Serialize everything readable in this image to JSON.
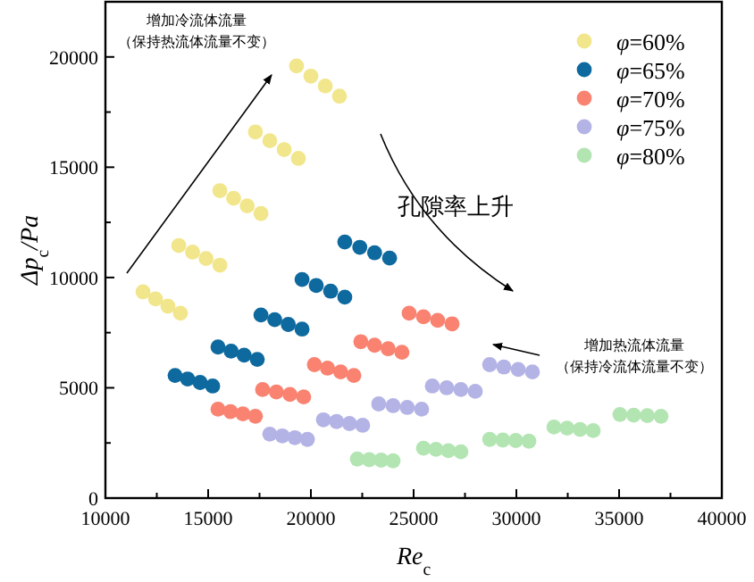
{
  "chart_data": {
    "type": "scatter",
    "xlabel": "Re$_{c}$",
    "ylabel": "Δp$_{c}$/Pa",
    "xlim": [
      10000,
      40000
    ],
    "xticks": [
      10000,
      15000,
      20000,
      25000,
      30000,
      35000,
      40000
    ],
    "ylim": [
      0,
      22500
    ],
    "yticks": [
      0,
      5000,
      10000,
      15000,
      20000
    ],
    "grid": false,
    "legend": "top right",
    "marker": "circle",
    "annotations": [
      "增加冷流体流量",
      "（保持热流体流量不变）",
      "孔隙率上升",
      "增加热流体流量",
      "（保持冷流体流量不变）"
    ],
    "series": [
      {
        "name": "φ=60%",
        "color": "#f2e68c",
        "x": [
          11830,
          12440,
          13040,
          13650,
          13570,
          14240,
          14900,
          15570,
          15570,
          16240,
          16900,
          17570,
          17300,
          18000,
          18700,
          19390,
          19300,
          20000,
          20700,
          21390
        ],
        "values": [
          9350,
          9030,
          8700,
          8380,
          11450,
          11150,
          10860,
          10560,
          13940,
          13590,
          13250,
          12900,
          16600,
          16200,
          15800,
          15400,
          19590,
          19130,
          18680,
          18220
        ]
      },
      {
        "name": "φ=65%",
        "color": "#0d699e",
        "x": [
          13390,
          14000,
          14610,
          15220,
          15480,
          16120,
          16750,
          17390,
          17570,
          18240,
          18900,
          19570,
          19570,
          20260,
          20960,
          21650,
          21650,
          22380,
          23100,
          23830
        ],
        "values": [
          5560,
          5400,
          5240,
          5080,
          6850,
          6660,
          6480,
          6290,
          8300,
          8090,
          7870,
          7660,
          9910,
          9640,
          9380,
          9110,
          11610,
          11370,
          11120,
          10880
        ]
      },
      {
        "name": "φ=70%",
        "color": "#f98270",
        "x": [
          15480,
          16090,
          16690,
          17300,
          17650,
          18320,
          18980,
          19650,
          20170,
          20810,
          21450,
          22090,
          22430,
          23100,
          23760,
          24430,
          24780,
          25480,
          26170,
          26870
        ],
        "values": [
          4030,
          3920,
          3820,
          3710,
          4920,
          4810,
          4700,
          4590,
          6050,
          5890,
          5720,
          5560,
          7090,
          6930,
          6770,
          6610,
          8380,
          8220,
          8060,
          7900
        ]
      },
      {
        "name": "φ=75%",
        "color": "#b4b3e5",
        "x": [
          18000,
          18610,
          19220,
          19830,
          20610,
          21250,
          21880,
          22520,
          23300,
          24000,
          24690,
          25390,
          25910,
          26610,
          27300,
          28000,
          28700,
          29390,
          30090,
          30780
        ],
        "values": [
          2900,
          2820,
          2740,
          2660,
          3550,
          3470,
          3380,
          3300,
          4270,
          4190,
          4110,
          4030,
          5080,
          5000,
          4920,
          4840,
          6050,
          5940,
          5830,
          5720
        ]
      },
      {
        "name": "φ=80%",
        "color": "#b3e5b3",
        "x": [
          22260,
          22840,
          23420,
          24000,
          25480,
          26090,
          26690,
          27300,
          28700,
          29340,
          29970,
          30610,
          31830,
          32470,
          33100,
          33740,
          35040,
          35710,
          36370,
          37040
        ],
        "values": [
          1770,
          1740,
          1720,
          1690,
          2260,
          2210,
          2150,
          2100,
          2660,
          2630,
          2610,
          2580,
          3220,
          3170,
          3110,
          3060,
          3790,
          3760,
          3740,
          3710
        ]
      }
    ]
  }
}
